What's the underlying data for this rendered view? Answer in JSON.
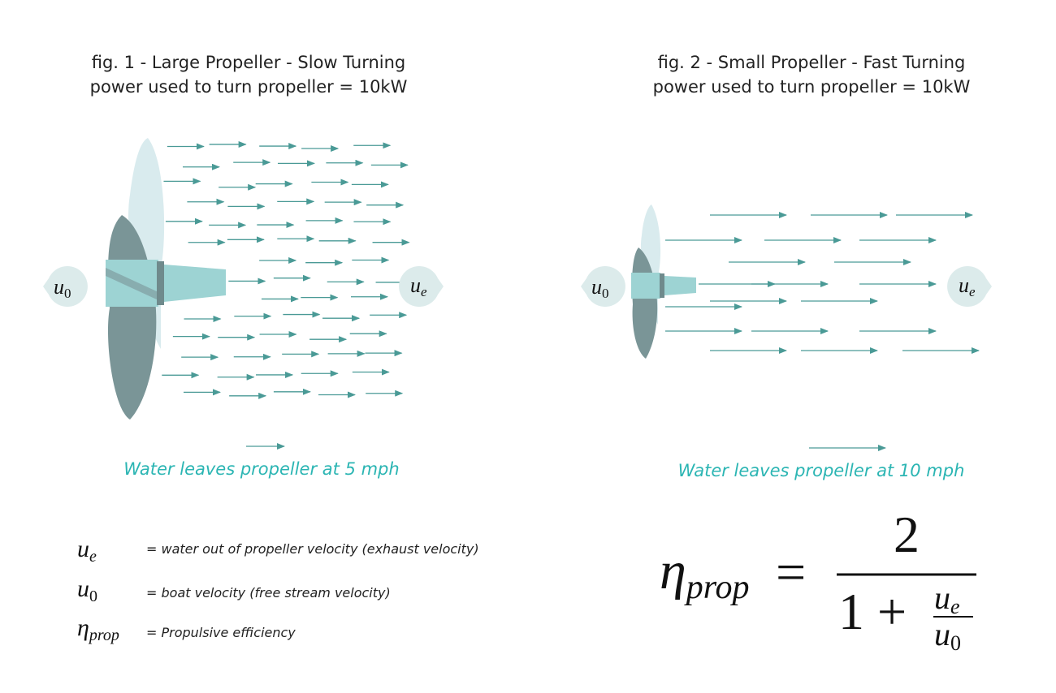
{
  "figures": [
    {
      "title": "fig. 1 - Large Propeller - Slow Turning",
      "subtitle": "power used to turn propeller = 10kW",
      "caption": "Water leaves propeller at 5 mph",
      "inflow": {
        "symbol": "u",
        "subscript": "0"
      },
      "outflow": {
        "symbol": "u",
        "subscript": "e"
      }
    },
    {
      "title": "fig. 2 - Small Propeller - Fast Turning",
      "subtitle": "power used to turn propeller = 10kW",
      "caption": "Water leaves propeller at 10 mph",
      "inflow": {
        "symbol": "u",
        "subscript": "0"
      },
      "outflow": {
        "symbol": "u",
        "subscript": "e"
      }
    }
  ],
  "legend": [
    {
      "symbol": "u",
      "subscript": "e",
      "definition": "= water out of propeller velocity (exhaust velocity)"
    },
    {
      "symbol": "u",
      "subscript": "0",
      "definition": "= boat velocity (free stream velocity)"
    },
    {
      "symbol": "η",
      "subscript": "prop",
      "definition": "= Propulsive efficiency"
    }
  ],
  "formula": {
    "lhs": {
      "symbol": "η",
      "subscript": "prop"
    },
    "equals": "=",
    "numerator": "2",
    "denominator": {
      "one": "1",
      "plus": "+",
      "fraction": {
        "numerator": {
          "symbol": "u",
          "subscript": "e"
        },
        "denominator": {
          "symbol": "u",
          "subscript": "0"
        }
      }
    }
  }
}
